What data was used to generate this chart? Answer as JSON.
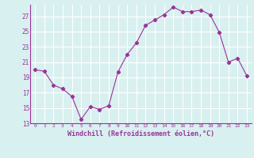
{
  "x": [
    0,
    1,
    2,
    3,
    4,
    5,
    6,
    7,
    8,
    9,
    10,
    11,
    12,
    13,
    14,
    15,
    16,
    17,
    18,
    19,
    20,
    21,
    22,
    23
  ],
  "y": [
    20.0,
    19.8,
    18.0,
    17.5,
    16.5,
    13.5,
    15.2,
    14.8,
    15.3,
    19.7,
    22.0,
    23.5,
    25.8,
    26.5,
    27.2,
    28.2,
    27.6,
    27.6,
    27.8,
    27.2,
    24.9,
    21.0,
    21.5,
    19.2
  ],
  "line_color": "#993399",
  "marker": "D",
  "marker_size": 2.2,
  "bg_color": "#d9f0f0",
  "grid_color": "#ffffff",
  "tick_color": "#993399",
  "label_color": "#993399",
  "xlabel": "Windchill (Refroidissement éolien,°C)",
  "ylim": [
    13,
    28.5
  ],
  "yticks": [
    13,
    15,
    17,
    19,
    21,
    23,
    25,
    27
  ],
  "xlim": [
    -0.5,
    23.5
  ],
  "xticks": [
    0,
    1,
    2,
    3,
    4,
    5,
    6,
    7,
    8,
    9,
    10,
    11,
    12,
    13,
    14,
    15,
    16,
    17,
    18,
    19,
    20,
    21,
    22,
    23
  ]
}
